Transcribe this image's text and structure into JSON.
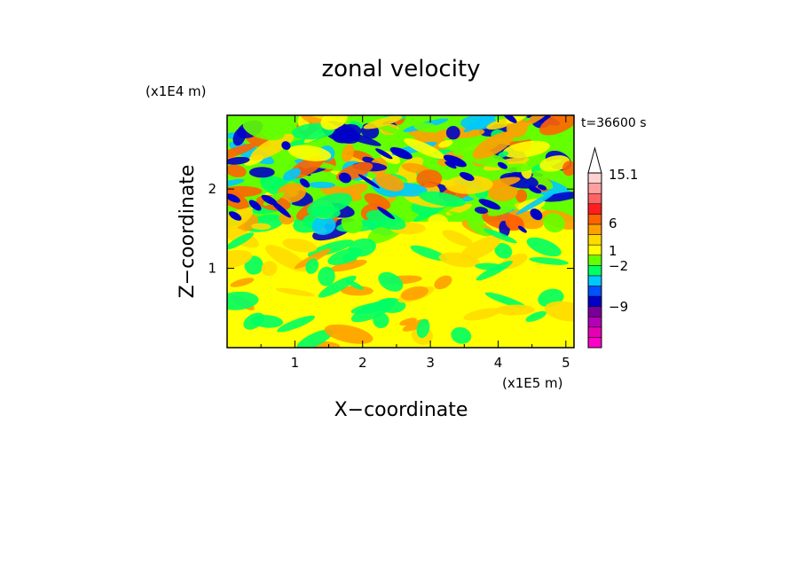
{
  "chart_data": {
    "type": "heatmap",
    "title": "zonal velocity",
    "xlabel": "X−coordinate",
    "ylabel": "Z−coordinate",
    "x_unit": "(x1E5 m)",
    "y_unit": "(x1E4 m)",
    "time_label": "t=36600 s",
    "xlim": [
      0,
      5.12
    ],
    "ylim": [
      0,
      2.93
    ],
    "x_ticks": [
      1,
      2,
      3,
      4,
      5
    ],
    "y_ticks": [
      1,
      2
    ],
    "colorbar": {
      "labels": [
        "15.1",
        "6",
        "1",
        "−2",
        "−9"
      ],
      "colors": [
        "#ff00c8",
        "#e600b4",
        "#b400b4",
        "#780096",
        "#0000c8",
        "#0050ff",
        "#00c8ff",
        "#00ff64",
        "#64ff00",
        "#ffff00",
        "#ffdc00",
        "#ffa000",
        "#ff6400",
        "#ff1e1e",
        "#ff6464",
        "#ffa0a0",
        "#ffd2d2"
      ],
      "extend_top": true
    },
    "grid": false
  }
}
